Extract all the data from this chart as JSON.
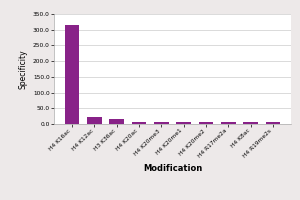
{
  "categories": [
    "H4 K16ac",
    "H4 K12ac",
    "H3 K36ac",
    "H4 K20ac",
    "H4 K20me3",
    "H4 K20me1",
    "H4 K20me2",
    "H4 R17me2a",
    "H4 K8ac",
    "H4 R19me2s"
  ],
  "values": [
    315,
    22,
    17,
    5,
    6,
    6,
    7,
    7,
    5,
    5
  ],
  "bar_color": "#882288",
  "ylabel": "Specificity",
  "xlabel": "Modification",
  "ylim": [
    0,
    350
  ],
  "yticks": [
    0,
    50,
    100,
    150,
    200,
    250,
    300,
    350
  ],
  "ytick_labels": [
    "0.0",
    "50.0",
    "100.0",
    "150.0",
    "200.0",
    "250.0",
    "300.0",
    "350.0"
  ],
  "background_color": "#ede9e9",
  "plot_bg_color": "#ffffff",
  "grid_color": "#cccccc"
}
